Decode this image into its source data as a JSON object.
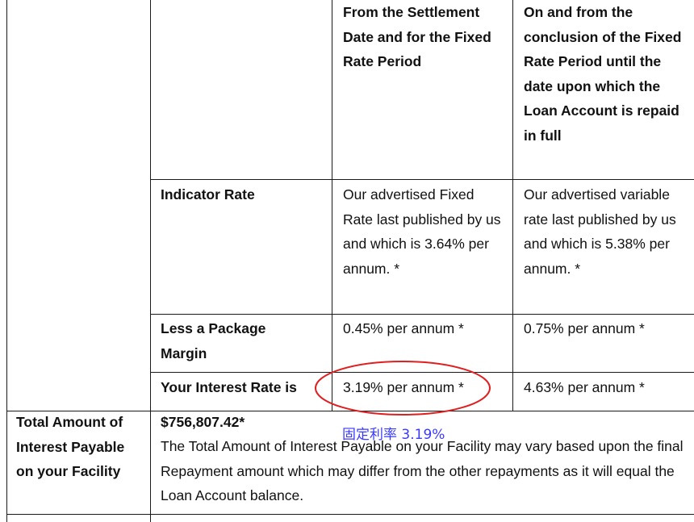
{
  "table": {
    "header": {
      "col1": "From the Settlement Date and for the Fixed Rate Period",
      "col2": "On and from the conclusion of the Fixed Rate Period until the date upon which the Loan Account is repaid in full"
    },
    "rows": [
      {
        "label": "Indicator Rate",
        "col1": "Our advertised Fixed Rate last published by us and which is 3.64% per annum. *",
        "col2": "Our advertised variable rate last published by us and which is 5.38% per annum. *"
      },
      {
        "label": "Less a Package Margin",
        "col1": "0.45% per annum *",
        "col2": "0.75% per annum *"
      },
      {
        "label": "Your Interest Rate is",
        "col1": "3.19% per annum *",
        "col2": "4.63% per annum *"
      }
    ],
    "total": {
      "label": "Total Amount of Interest Payable on your Facility",
      "amount": "$756,807.42*",
      "description": "The Total Amount of Interest Payable on your Facility may vary based upon the final Repayment amount which may differ from the other repayments as it will equal the Loan Account balance."
    }
  },
  "annotation": {
    "text": "固定利率 3.19%",
    "color": "#3a3aff",
    "circle_color": "#e02020"
  }
}
